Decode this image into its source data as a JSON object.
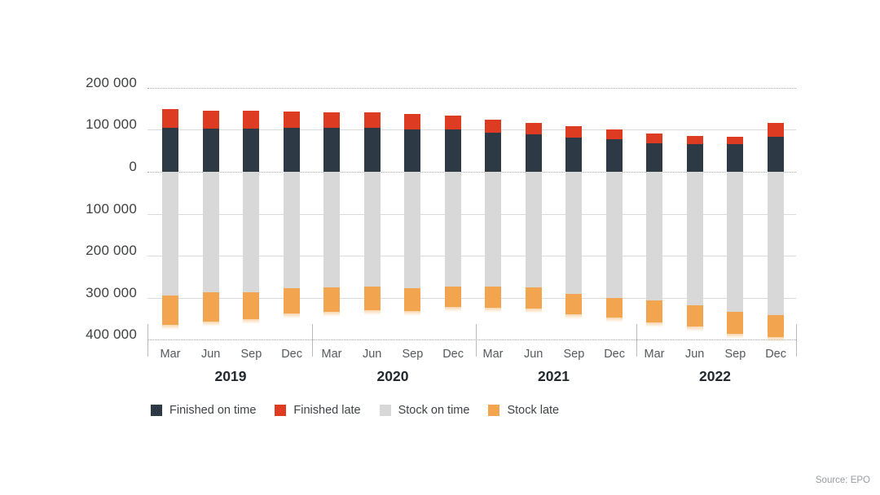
{
  "source_note": "Source: EPO",
  "legend": [
    {
      "label": "Finished on time",
      "color": "#2d3a46"
    },
    {
      "label": "Finished late",
      "color": "#dd3b22"
    },
    {
      "label": "Stock on time",
      "color": "#d8d8d8"
    },
    {
      "label": "Stock late",
      "color": "#f2a44f"
    }
  ],
  "chart_data": {
    "type": "bar",
    "subtype": "stacked-diverging",
    "title": "",
    "xlabel": "",
    "ylabel": "",
    "grid": true,
    "legend_position": "bottom",
    "years": [
      "2019",
      "2020",
      "2021",
      "2022"
    ],
    "quarters": [
      "Mar",
      "Jun",
      "Sep",
      "Dec",
      "Mar",
      "Jun",
      "Sep",
      "Dec",
      "Mar",
      "Jun",
      "Sep",
      "Dec",
      "Mar",
      "Jun",
      "Sep",
      "Dec"
    ],
    "y_axis": {
      "ylim": [
        -400000,
        200000
      ],
      "tick_values": [
        200000,
        100000,
        0,
        -100000,
        -200000,
        -300000,
        -400000
      ],
      "tick_labels": [
        "200 000",
        "100 000",
        "0",
        "100 000",
        "200 000",
        "300 000",
        "400 000"
      ],
      "note": "values below zero are plotted downward but labelled as positive magnitudes"
    },
    "series": [
      {
        "name": "Finished on time",
        "direction": "up",
        "color": "#2d3a46",
        "values": [
          105000,
          102000,
          102000,
          104000,
          104000,
          105000,
          101000,
          101000,
          93000,
          89000,
          81000,
          77000,
          68000,
          65000,
          66000,
          83000
        ]
      },
      {
        "name": "Finished late",
        "direction": "up",
        "color": "#dd3b22",
        "values": [
          44000,
          44000,
          43000,
          40000,
          38000,
          36000,
          36000,
          33000,
          32000,
          28000,
          28000,
          23000,
          23000,
          21000,
          18000,
          34000
        ]
      },
      {
        "name": "Stock on time",
        "direction": "down",
        "color": "#d8d8d8",
        "values": [
          294000,
          287000,
          287000,
          277000,
          276000,
          273000,
          278000,
          274000,
          274000,
          276000,
          290000,
          301000,
          307000,
          318000,
          333000,
          341000
        ]
      },
      {
        "name": "Stock late",
        "direction": "down",
        "color": "#f2a44f",
        "values": [
          71000,
          69000,
          63000,
          61000,
          58000,
          56000,
          53000,
          47000,
          49000,
          50000,
          50000,
          46000,
          51000,
          50000,
          53000,
          53000
        ]
      }
    ]
  }
}
